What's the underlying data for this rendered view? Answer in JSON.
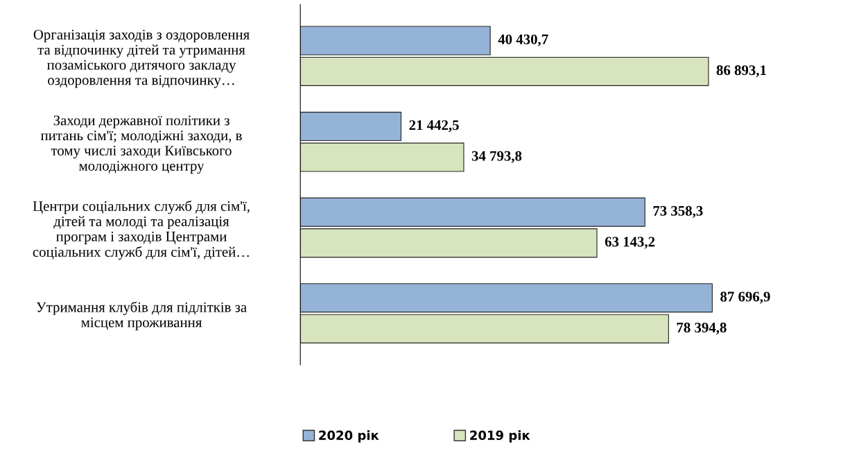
{
  "chart_data": {
    "type": "bar",
    "orientation": "horizontal",
    "categories": [
      "Організація заходів з оздоровлення\nта відпочинку дітей та утримання\nпозаміського дитячого закладу\nоздоровлення та відпочинку…",
      "Заходи державної політики з\nпитань сім'ї; молодіжні заходи, в\nтому числі заходи Київського\nмолодіжного центру",
      "Центри соціальних служб для сім'ї,\nдітей та молоді та реалізація\nпрограм і заходів Центрами\nсоціальних служб для сім'ї, дітей…",
      "Утримання клубів для підлітків за\nмісцем проживання"
    ],
    "series": [
      {
        "name": "2020 рік",
        "color": "#95b3d7",
        "values": [
          40430.7,
          21442.5,
          73358.3,
          87696.9
        ],
        "value_labels": [
          "40 430,7",
          "21 442,5",
          "73 358,3",
          "87 696,9"
        ]
      },
      {
        "name": "2019 рік",
        "color": "#d7e4bd",
        "values": [
          86893.1,
          34793.8,
          63143.2,
          78394.8
        ],
        "value_labels": [
          "86 893,1",
          "34 793,8",
          "63 143,2",
          "78 394,8"
        ]
      }
    ],
    "legend": "bottom",
    "grid": false
  }
}
